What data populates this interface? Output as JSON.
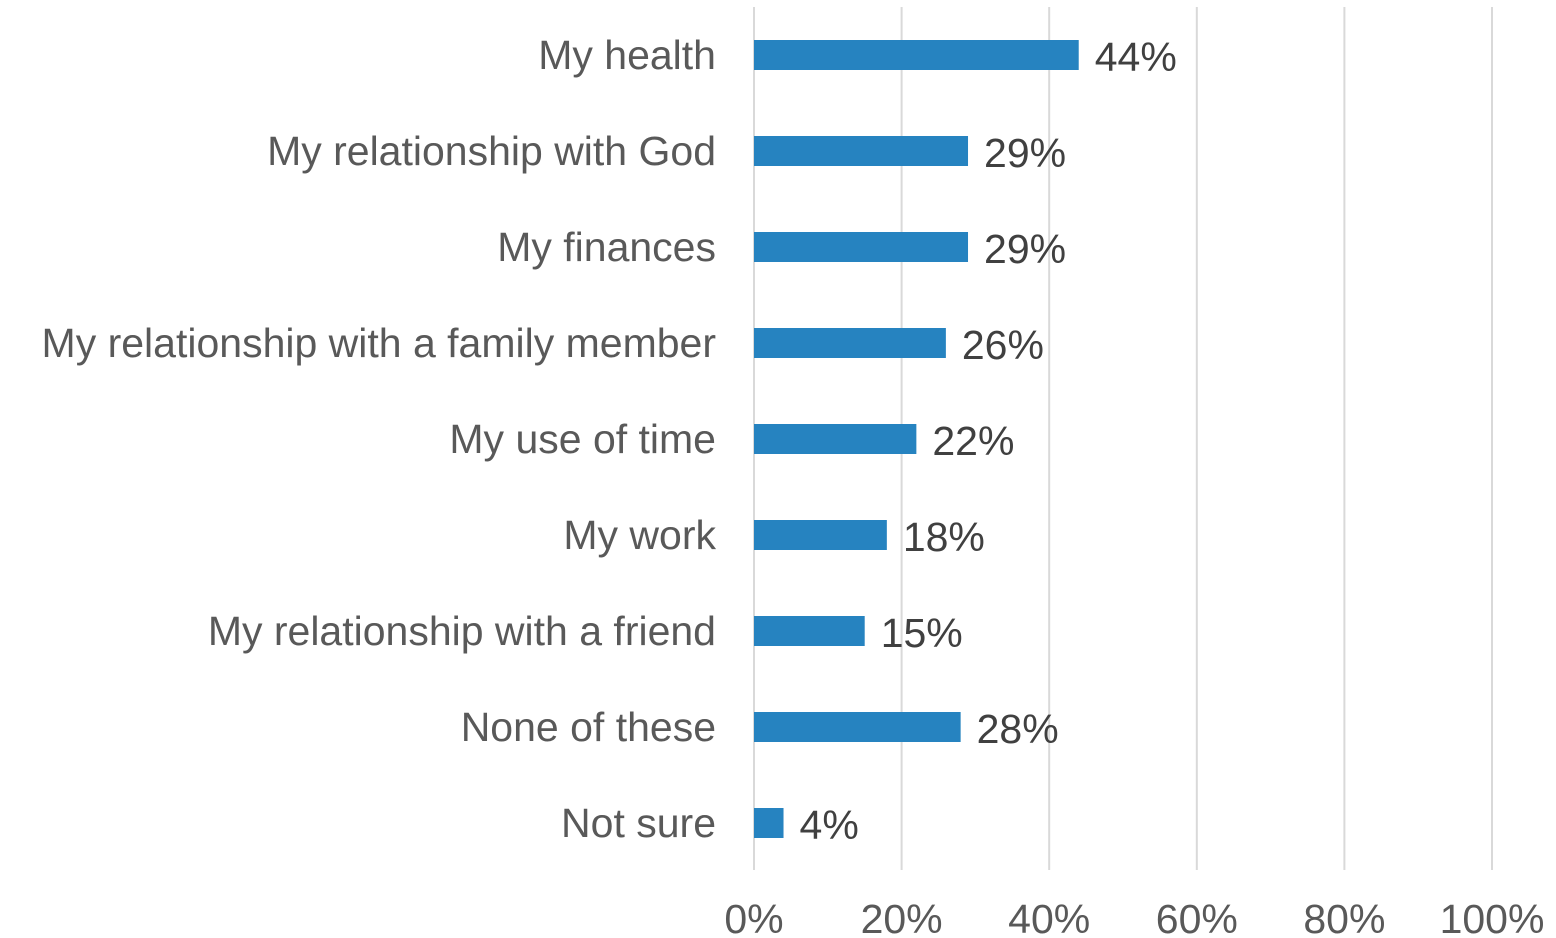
{
  "chart_data": {
    "type": "bar",
    "orientation": "horizontal",
    "categories": [
      "My health",
      "My relationship with God",
      "My finances",
      "My relationship with a family member",
      "My use of time",
      "My work",
      "My relationship with a friend",
      "None of these",
      "Not sure"
    ],
    "values": [
      44,
      29,
      29,
      26,
      22,
      18,
      15,
      28,
      4
    ],
    "data_labels": [
      "44%",
      "29%",
      "29%",
      "26%",
      "22%",
      "18%",
      "15%",
      "28%",
      "4%"
    ],
    "xlim": [
      0,
      100
    ],
    "x_ticks": [
      0,
      20,
      40,
      60,
      80,
      100
    ],
    "x_tick_labels": [
      "0%",
      "20%",
      "40%",
      "60%",
      "80%",
      "100%"
    ],
    "grid": true,
    "legend": "none",
    "bar_color": "#2683c0"
  }
}
